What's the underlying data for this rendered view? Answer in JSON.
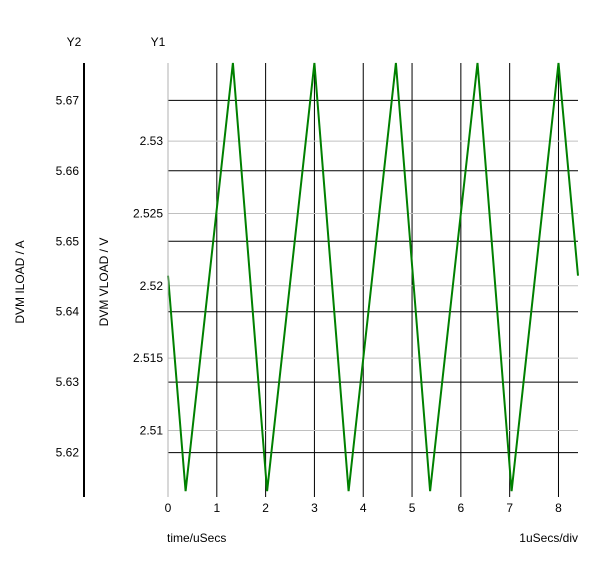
{
  "chart_data": {
    "type": "line",
    "x_axis": {
      "label": "time/uSecs",
      "scale_note": "1uSecs/div",
      "range": [
        0,
        8.4
      ],
      "ticks": [
        0,
        1,
        2,
        3,
        4,
        5,
        6,
        7,
        8
      ]
    },
    "y1_axis": {
      "title": "Y1",
      "label": "DVM VLOAD / V",
      "range": [
        2.5054,
        2.5354
      ],
      "ticks": [
        2.51,
        2.515,
        2.52,
        2.525,
        2.53
      ],
      "tick_labels": [
        "2.51",
        "2.515",
        "2.52",
        "2.525",
        "2.53"
      ]
    },
    "y2_axis": {
      "title": "Y2",
      "label": "DVM ILOAD / A",
      "range": [
        5.6137,
        5.6753
      ],
      "ticks": [
        5.62,
        5.63,
        5.64,
        5.65,
        5.66,
        5.67
      ],
      "tick_labels": [
        "5.62",
        "5.63",
        "5.64",
        "5.65",
        "5.66",
        "5.67"
      ]
    },
    "grid": true,
    "series": [
      {
        "color": "#008000",
        "axis": "y1",
        "x": [
          0,
          0.36,
          1.33,
          2.03,
          3.0,
          3.7,
          4.67,
          5.37,
          6.34,
          7.04,
          8.0,
          8.4
        ],
        "y": [
          2.5207,
          2.5058,
          2.5354,
          2.5058,
          2.5354,
          2.5058,
          2.5354,
          2.5058,
          2.5354,
          2.5058,
          2.5354,
          2.5207
        ]
      }
    ]
  }
}
